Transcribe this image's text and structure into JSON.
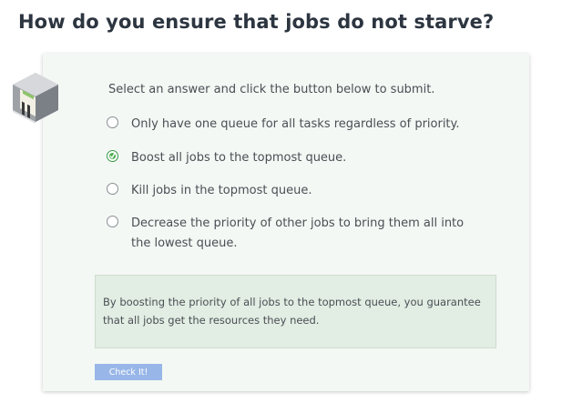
{
  "question": {
    "title": "How do you ensure that jobs do not starve?"
  },
  "quiz": {
    "icon": "quiz-cube-icon",
    "instruction": "Select an answer and click the button below to submit.",
    "options": [
      {
        "label": "Only have one queue for all tasks regardless of priority.",
        "selected": false
      },
      {
        "label": "Boost all jobs to the topmost queue.",
        "selected": true
      },
      {
        "label": "Kill jobs in the topmost queue.",
        "selected": false
      },
      {
        "label": "Decrease the priority of other jobs to bring them all into the lowest queue.",
        "selected": false
      }
    ],
    "feedback": "By boosting the priority of all jobs to the topmost queue, you guarantee that all jobs get the resources they need.",
    "button_label": "Check It!"
  },
  "colors": {
    "card_background": "#f3f8f4",
    "feedback_background": "#e2ede3",
    "selected_radio": "#4caf50",
    "button_background": "#98b6e8"
  }
}
